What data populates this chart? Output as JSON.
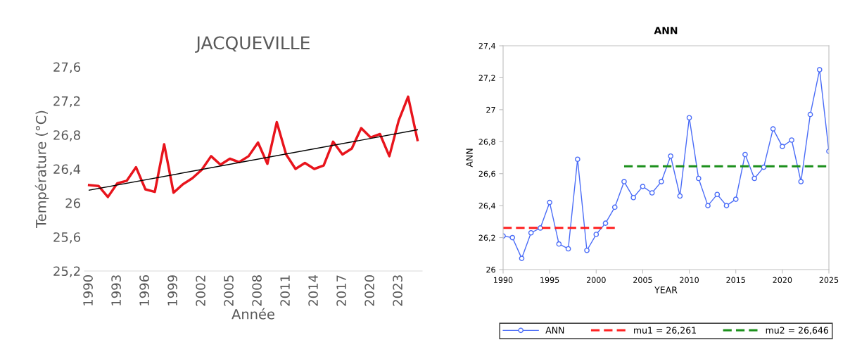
{
  "chart_data": [
    {
      "type": "line",
      "title": "JACQUEVILLE",
      "xlabel": "Année",
      "ylabel": "Température (°C)",
      "grid": false,
      "xlim": [
        1989.5,
        2025.5
      ],
      "xticks": [
        1990,
        1993,
        1996,
        1999,
        2002,
        2005,
        2008,
        2011,
        2014,
        2017,
        2020,
        2023
      ],
      "ylim": [
        25.2,
        27.6
      ],
      "yticks": [
        {
          "value": 25.2,
          "label": "25,2"
        },
        {
          "value": 25.6,
          "label": "25,6"
        },
        26,
        {
          "value": 26.4,
          "label": "26,4"
        },
        {
          "value": 26.8,
          "label": "26,8"
        },
        {
          "value": 27.2,
          "label": "27,2"
        },
        {
          "value": 27.6,
          "label": "27,6"
        }
      ],
      "series": [
        {
          "color": "#e8141c",
          "x": [
            1990,
            1991,
            1992,
            1993,
            1994,
            1995,
            1996,
            1997,
            1998,
            1999,
            2000,
            2001,
            2002,
            2003,
            2004,
            2005,
            2006,
            2007,
            2008,
            2009,
            2010,
            2011,
            2012,
            2013,
            2014,
            2015,
            2016,
            2017,
            2018,
            2019,
            2020,
            2021,
            2022,
            2023,
            2024,
            2025
          ],
          "values": [
            26.21,
            26.2,
            26.07,
            26.23,
            26.26,
            26.42,
            26.16,
            26.13,
            26.69,
            26.12,
            26.22,
            26.29,
            26.39,
            26.55,
            26.45,
            26.52,
            26.48,
            26.55,
            26.71,
            26.46,
            26.95,
            26.57,
            26.4,
            26.47,
            26.4,
            26.44,
            26.72,
            26.57,
            26.64,
            26.88,
            26.77,
            26.81,
            26.55,
            26.97,
            27.25,
            26.74
          ]
        },
        {
          "color": "#000000",
          "x": [
            1990,
            2025
          ],
          "values": [
            26.15,
            26.86
          ]
        }
      ]
    },
    {
      "type": "line",
      "title": "ANN",
      "xlabel": "YEAR",
      "ylabel": "ANN",
      "grid": false,
      "legend": "bottom",
      "xlim": [
        1990,
        2025
      ],
      "xticks": [
        1990,
        1995,
        2000,
        2005,
        2010,
        2015,
        2020,
        2025
      ],
      "ylim": [
        26,
        27.4
      ],
      "yticks": [
        26,
        {
          "value": 26.2,
          "label": "26,2"
        },
        {
          "value": 26.4,
          "label": "26,4"
        },
        {
          "value": 26.6,
          "label": "26,6"
        },
        {
          "value": 26.8,
          "label": "26,8"
        },
        27,
        {
          "value": 27.2,
          "label": "27,2"
        },
        {
          "value": 27.4,
          "label": "27,4"
        }
      ],
      "series": [
        {
          "name": "ANN",
          "color": "#4a6cf7",
          "marker": "circle",
          "x": [
            1990,
            1991,
            1992,
            1993,
            1994,
            1995,
            1996,
            1997,
            1998,
            1999,
            2000,
            2001,
            2002,
            2003,
            2004,
            2005,
            2006,
            2007,
            2008,
            2009,
            2010,
            2011,
            2012,
            2013,
            2014,
            2015,
            2016,
            2017,
            2018,
            2019,
            2020,
            2021,
            2022,
            2023,
            2024,
            2025
          ],
          "values": [
            26.21,
            26.2,
            26.07,
            26.23,
            26.26,
            26.42,
            26.16,
            26.13,
            26.69,
            26.12,
            26.22,
            26.29,
            26.39,
            26.55,
            26.45,
            26.52,
            26.48,
            26.55,
            26.71,
            26.46,
            26.95,
            26.57,
            26.4,
            26.47,
            26.4,
            26.44,
            26.72,
            26.57,
            26.64,
            26.88,
            26.77,
            26.81,
            26.55,
            26.97,
            27.25,
            26.74
          ]
        },
        {
          "name": "mu1 = 26,261",
          "color": "#ff2020",
          "line_style": "dashed",
          "x": [
            1990,
            2002
          ],
          "values": [
            26.261,
            26.261
          ]
        },
        {
          "name": "mu2 = 26,646",
          "color": "#1a8f1a",
          "line_style": "dashed",
          "x": [
            2003,
            2025
          ],
          "values": [
            26.646,
            26.646
          ]
        }
      ]
    }
  ]
}
